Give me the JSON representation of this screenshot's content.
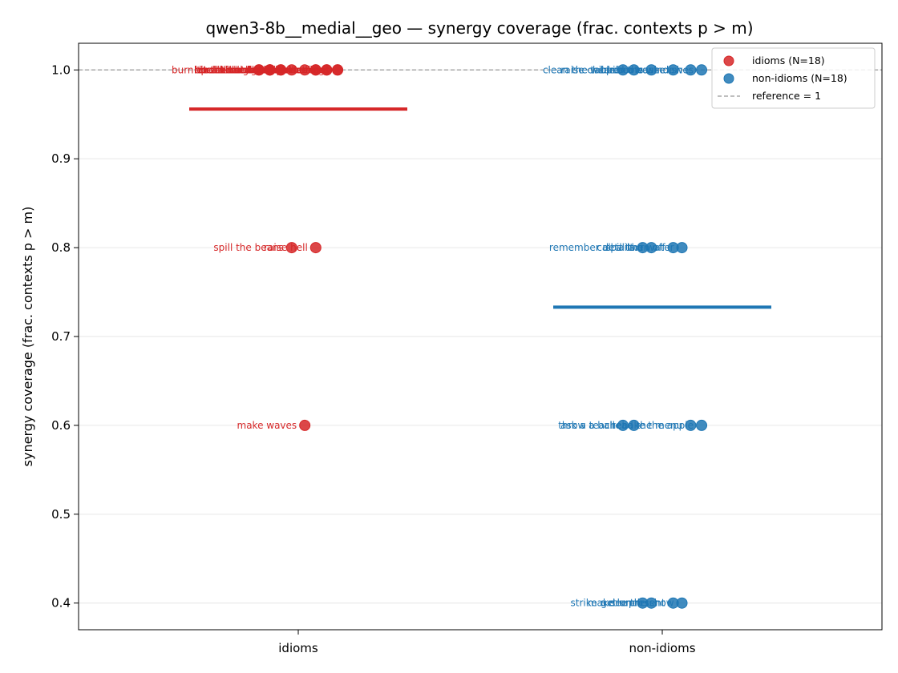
{
  "chart_data": {
    "type": "scatter",
    "title": "qwen3-8b__medial__geo — synergy coverage  (frac. contexts p > m)",
    "ylabel": "synergy coverage  (frac. contexts p > m)",
    "xlabel": "",
    "categories": [
      "idioms",
      "non-idioms"
    ],
    "ylim": [
      0.37,
      1.03
    ],
    "yticks": [
      0.4,
      0.5,
      0.6,
      0.7,
      0.8,
      0.9,
      1.0
    ],
    "grid": "horizontal",
    "legend_position": "top-right",
    "reference": {
      "value": 1,
      "label": "reference = 1"
    },
    "series": [
      {
        "name": "idioms (N=18)",
        "color": "#d62728",
        "category": "idioms",
        "mean": 0.956,
        "points": [
          {
            "label": "lend a hand",
            "value": 1.0,
            "jitter": -0.18
          },
          {
            "label": "hit the sack",
            "value": 1.0,
            "jitter": -0.18
          },
          {
            "label": "break the ice",
            "value": 1.0,
            "jitter": -0.13
          },
          {
            "label": "call it a day",
            "value": 1.0,
            "jitter": -0.13
          },
          {
            "label": "bite the bullet",
            "value": 1.0,
            "jitter": -0.13
          },
          {
            "label": "pull the trigger",
            "value": 1.0,
            "jitter": -0.08
          },
          {
            "label": "burn the midnight oil",
            "value": 1.0,
            "jitter": -0.08
          },
          {
            "label": "cut corners",
            "value": 1.0,
            "jitter": -0.03
          },
          {
            "label": "kick the bucket",
            "value": 1.0,
            "jitter": 0.03
          },
          {
            "label": "hit the road",
            "value": 1.0,
            "jitter": 0.08
          },
          {
            "label": "turn the tables",
            "value": 1.0,
            "jitter": 0.08
          },
          {
            "label": "face the music",
            "value": 1.0,
            "jitter": 0.13
          },
          {
            "label": "take the cake",
            "value": 1.0,
            "jitter": 0.13
          },
          {
            "label": "pull strings",
            "value": 1.0,
            "jitter": 0.18
          },
          {
            "label": "miss the boat",
            "value": 1.0,
            "jitter": 0.18
          },
          {
            "label": "spill the beans",
            "value": 0.8,
            "jitter": -0.03
          },
          {
            "label": "raise hell",
            "value": 0.8,
            "jitter": 0.08
          },
          {
            "label": "make waves",
            "value": 0.6,
            "jitter": 0.03
          }
        ]
      },
      {
        "name": "non-idioms (N=18)",
        "color": "#1f77b4",
        "category": "non-idioms",
        "mean": 0.733,
        "points": [
          {
            "label": "clean the table",
            "value": 1.0,
            "jitter": -0.18
          },
          {
            "label": "raise children",
            "value": 1.0,
            "jitter": -0.13
          },
          {
            "label": "wear boots",
            "value": 1.0,
            "jitter": -0.05
          },
          {
            "label": "build a house",
            "value": 1.0,
            "jitter": 0.05
          },
          {
            "label": "open the window",
            "value": 1.0,
            "jitter": 0.13
          },
          {
            "label": "wash dishes",
            "value": 1.0,
            "jitter": 0.18
          },
          {
            "label": "remember details",
            "value": 0.8,
            "jitter": -0.09
          },
          {
            "label": "call a taxi",
            "value": 0.8,
            "jitter": -0.05
          },
          {
            "label": "turn off",
            "value": 0.8,
            "jitter": 0.05
          },
          {
            "label": "spill the water",
            "value": 0.8,
            "jitter": 0.09
          },
          {
            "label": "throw a ball",
            "value": 0.6,
            "jitter": -0.18
          },
          {
            "label": "ask a teacher",
            "value": 0.6,
            "jitter": -0.13
          },
          {
            "label": "read the menu",
            "value": 0.6,
            "jitter": 0.13
          },
          {
            "label": "bake the apple",
            "value": 0.6,
            "jitter": 0.18
          },
          {
            "label": "strike a drum",
            "value": 0.4,
            "jitter": -0.09
          },
          {
            "label": "make lunch",
            "value": 0.4,
            "jitter": -0.05
          },
          {
            "label": "get a present",
            "value": 0.4,
            "jitter": 0.05
          },
          {
            "label": "see the show",
            "value": 0.4,
            "jitter": 0.09
          }
        ]
      }
    ]
  }
}
